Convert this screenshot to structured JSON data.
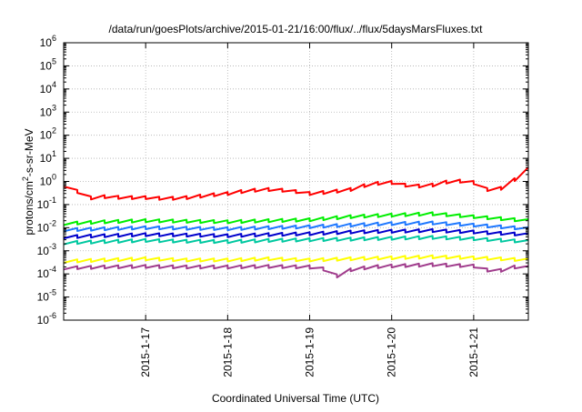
{
  "chart_data": {
    "type": "line",
    "title": "/data/run/goesPlots/archive/2015-01-21/16:00/flux/../flux/5daysMarsFluxes.txt",
    "xlabel": "Coordinated Universal Time (UTC)",
    "ylabel": {
      "before": "protons/cm",
      "sup": "2",
      "after": "-s-sr-MeV"
    },
    "y_scale": "log",
    "ylim": [
      1e-06,
      1000000.0
    ],
    "y_ticks": [
      {
        "base": "10",
        "exp": "-6"
      },
      {
        "base": "10",
        "exp": "-5"
      },
      {
        "base": "10",
        "exp": "-4"
      },
      {
        "base": "10",
        "exp": "-3"
      },
      {
        "base": "10",
        "exp": "-2"
      },
      {
        "base": "10",
        "exp": "-1"
      },
      {
        "base": "10",
        "exp": "0"
      },
      {
        "base": "10",
        "exp": "1"
      },
      {
        "base": "10",
        "exp": "2"
      },
      {
        "base": "10",
        "exp": "3"
      },
      {
        "base": "10",
        "exp": "4"
      },
      {
        "base": "10",
        "exp": "5"
      },
      {
        "base": "10",
        "exp": "6"
      }
    ],
    "xlim": [
      "2015-01-16 00:00",
      "2015-01-21 16:00"
    ],
    "x_ticks": [
      "2015-1-17",
      "2015-1-18",
      "2015-1-19",
      "2015-1-20",
      "2015-1-21"
    ],
    "grid": true,
    "series": [
      {
        "color": "#ff0000",
        "points": [
          [
            "2015-01-16 00:00",
            0.7
          ],
          [
            "2015-01-16 03:00",
            0.45
          ],
          [
            "2015-01-16 06:00",
            0.25
          ],
          [
            "2015-01-16 09:00",
            0.17
          ],
          [
            "2015-01-16 12:00",
            0.22
          ],
          [
            "2015-01-16 18:00",
            0.2
          ],
          [
            "2015-01-17 00:00",
            0.2
          ],
          [
            "2015-01-17 06:00",
            0.18
          ],
          [
            "2015-01-17 12:00",
            0.2
          ],
          [
            "2015-01-17 18:00",
            0.25
          ],
          [
            "2015-01-18 00:00",
            0.3
          ],
          [
            "2015-01-18 06:00",
            0.4
          ],
          [
            "2015-01-18 12:00",
            0.45
          ],
          [
            "2015-01-18 18:00",
            0.4
          ],
          [
            "2015-01-19 00:00",
            0.3
          ],
          [
            "2015-01-19 06:00",
            0.35
          ],
          [
            "2015-01-19 12:00",
            0.45
          ],
          [
            "2015-01-19 18:00",
            0.8
          ],
          [
            "2015-01-20 00:00",
            0.9
          ],
          [
            "2015-01-20 06:00",
            0.6
          ],
          [
            "2015-01-20 12:00",
            0.7
          ],
          [
            "2015-01-20 18:00",
            1.1
          ],
          [
            "2015-01-21 00:00",
            0.9
          ],
          [
            "2015-01-21 03:00",
            0.5
          ],
          [
            "2015-01-21 06:00",
            0.35
          ],
          [
            "2015-01-21 09:00",
            0.6
          ],
          [
            "2015-01-21 12:00",
            1.2
          ],
          [
            "2015-01-21 16:00",
            3.5
          ]
        ]
      },
      {
        "color": "#00ee00",
        "points": [
          [
            "2015-01-16 00:00",
            0.015
          ],
          [
            "2015-01-16 12:00",
            0.018
          ],
          [
            "2015-01-17 00:00",
            0.02
          ],
          [
            "2015-01-17 12:00",
            0.019
          ],
          [
            "2015-01-18 00:00",
            0.018
          ],
          [
            "2015-01-18 12:00",
            0.02
          ],
          [
            "2015-01-19 00:00",
            0.022
          ],
          [
            "2015-01-19 12:00",
            0.03
          ],
          [
            "2015-01-20 00:00",
            0.035
          ],
          [
            "2015-01-20 12:00",
            0.04
          ],
          [
            "2015-01-21 00:00",
            0.03
          ],
          [
            "2015-01-21 16:00",
            0.02
          ]
        ]
      },
      {
        "color": "#1e78ff",
        "points": [
          [
            "2015-01-16 00:00",
            0.008
          ],
          [
            "2015-01-16 12:00",
            0.009
          ],
          [
            "2015-01-17 00:00",
            0.01
          ],
          [
            "2015-01-17 12:00",
            0.0095
          ],
          [
            "2015-01-18 00:00",
            0.009
          ],
          [
            "2015-01-18 12:00",
            0.01
          ],
          [
            "2015-01-19 00:00",
            0.011
          ],
          [
            "2015-01-19 12:00",
            0.013
          ],
          [
            "2015-01-20 00:00",
            0.015
          ],
          [
            "2015-01-20 12:00",
            0.016
          ],
          [
            "2015-01-21 00:00",
            0.013
          ],
          [
            "2015-01-21 16:00",
            0.009
          ]
        ]
      },
      {
        "color": "#0000cc",
        "points": [
          [
            "2015-01-16 00:00",
            0.004
          ],
          [
            "2015-01-16 12:00",
            0.0045
          ],
          [
            "2015-01-17 00:00",
            0.005
          ],
          [
            "2015-01-17 12:00",
            0.0048
          ],
          [
            "2015-01-18 00:00",
            0.0045
          ],
          [
            "2015-01-18 12:00",
            0.005
          ],
          [
            "2015-01-19 00:00",
            0.0055
          ],
          [
            "2015-01-19 12:00",
            0.0065
          ],
          [
            "2015-01-20 00:00",
            0.007
          ],
          [
            "2015-01-20 12:00",
            0.0075
          ],
          [
            "2015-01-21 00:00",
            0.0065
          ],
          [
            "2015-01-21 16:00",
            0.005
          ]
        ]
      },
      {
        "color": "#00c8a0",
        "points": [
          [
            "2015-01-16 00:00",
            0.0022
          ],
          [
            "2015-01-16 12:00",
            0.0025
          ],
          [
            "2015-01-17 00:00",
            0.0028
          ],
          [
            "2015-01-17 12:00",
            0.0026
          ],
          [
            "2015-01-18 00:00",
            0.0025
          ],
          [
            "2015-01-18 12:00",
            0.0028
          ],
          [
            "2015-01-19 00:00",
            0.003
          ],
          [
            "2015-01-19 12:00",
            0.0032
          ],
          [
            "2015-01-20 00:00",
            0.0035
          ],
          [
            "2015-01-20 12:00",
            0.0038
          ],
          [
            "2015-01-21 00:00",
            0.0033
          ],
          [
            "2015-01-21 16:00",
            0.0025
          ]
        ]
      },
      {
        "color": "#ffff00",
        "points": [
          [
            "2015-01-16 00:00",
            0.00035
          ],
          [
            "2015-01-16 12:00",
            0.0004
          ],
          [
            "2015-01-17 00:00",
            0.00045
          ],
          [
            "2015-01-17 12:00",
            0.0004
          ],
          [
            "2015-01-18 00:00",
            0.0004
          ],
          [
            "2015-01-18 12:00",
            0.00045
          ],
          [
            "2015-01-19 00:00",
            0.0004
          ],
          [
            "2015-01-19 12:00",
            0.00045
          ],
          [
            "2015-01-20 00:00",
            0.0005
          ],
          [
            "2015-01-20 12:00",
            0.00055
          ],
          [
            "2015-01-21 00:00",
            0.0005
          ],
          [
            "2015-01-21 16:00",
            0.0004
          ]
        ]
      },
      {
        "color": "#a03c8c",
        "points": [
          [
            "2015-01-16 00:00",
            0.00018
          ],
          [
            "2015-01-16 12:00",
            0.0002
          ],
          [
            "2015-01-17 00:00",
            0.00021
          ],
          [
            "2015-01-17 12:00",
            0.0002
          ],
          [
            "2015-01-18 00:00",
            0.0002
          ],
          [
            "2015-01-18 12:00",
            0.00021
          ],
          [
            "2015-01-19 00:00",
            0.0002
          ],
          [
            "2015-01-19 06:00",
            0.00015
          ],
          [
            "2015-01-19 09:00",
            6e-05
          ],
          [
            "2015-01-19 12:00",
            0.00015
          ],
          [
            "2015-01-19 18:00",
            0.0002
          ],
          [
            "2015-01-20 00:00",
            0.00022
          ],
          [
            "2015-01-20 12:00",
            0.00025
          ],
          [
            "2015-01-21 00:00",
            0.00022
          ],
          [
            "2015-01-21 06:00",
            0.00012
          ],
          [
            "2015-01-21 12:00",
            0.0002
          ],
          [
            "2015-01-21 16:00",
            0.00019
          ]
        ]
      }
    ]
  }
}
